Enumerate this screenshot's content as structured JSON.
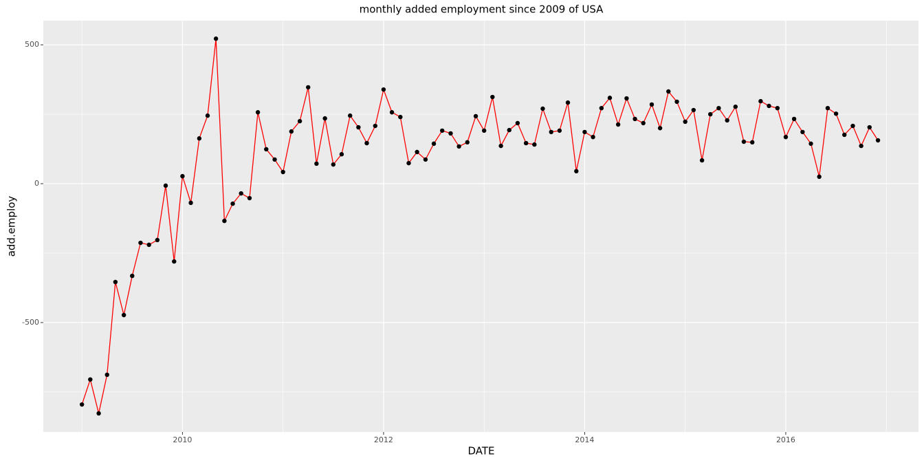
{
  "chart_data": {
    "type": "line",
    "title": "monthly added employment since 2009 of USA",
    "x_label": "DATE",
    "y_label": "add.employ",
    "x": [
      2009,
      2009.083,
      2009.167,
      2009.25,
      2009.333,
      2009.417,
      2009.5,
      2009.583,
      2009.667,
      2009.75,
      2009.833,
      2009.917,
      2010,
      2010.083,
      2010.167,
      2010.25,
      2010.333,
      2010.417,
      2010.5,
      2010.583,
      2010.667,
      2010.75,
      2010.833,
      2010.917,
      2011,
      2011.083,
      2011.167,
      2011.25,
      2011.333,
      2011.417,
      2011.5,
      2011.583,
      2011.667,
      2011.75,
      2011.833,
      2011.917,
      2012,
      2012.083,
      2012.167,
      2012.25,
      2012.333,
      2012.417,
      2012.5,
      2012.583,
      2012.667,
      2012.75,
      2012.833,
      2012.917,
      2013,
      2013.083,
      2013.167,
      2013.25,
      2013.333,
      2013.417,
      2013.5,
      2013.583,
      2013.667,
      2013.75,
      2013.833,
      2013.917,
      2014,
      2014.083,
      2014.167,
      2014.25,
      2014.333,
      2014.417,
      2014.5,
      2014.583,
      2014.667,
      2014.75,
      2014.833,
      2014.917,
      2015,
      2015.083,
      2015.167,
      2015.25,
      2015.333,
      2015.417,
      2015.5,
      2015.583,
      2015.667,
      2015.75,
      2015.833,
      2015.917,
      2016,
      2016.083,
      2016.167,
      2016.25,
      2016.333,
      2016.417,
      2016.5,
      2016.583,
      2016.667,
      2016.75,
      2016.833,
      2016.917
    ],
    "series": [
      {
        "color": "#ff0000",
        "point_color": "#000000",
        "values": [
          -795,
          -705,
          -827,
          -688,
          -354,
          -473,
          -332,
          -213,
          -220,
          -203,
          -7,
          -280,
          27,
          -69,
          163,
          245,
          522,
          -134,
          -72,
          -35,
          -52,
          257,
          124,
          87,
          42,
          188,
          225,
          347,
          72,
          235,
          69,
          106,
          245,
          203,
          146,
          208,
          339,
          257,
          240,
          74,
          114,
          87,
          144,
          191,
          181,
          134,
          149,
          243,
          191,
          312,
          136,
          193,
          218,
          146,
          141,
          270,
          186,
          191,
          292,
          45,
          186,
          168,
          272,
          309,
          213,
          307,
          233,
          218,
          285,
          200,
          332,
          295,
          223,
          265,
          84,
          250,
          272,
          228,
          277,
          151,
          149,
          297,
          280,
          272,
          168,
          233,
          186,
          144,
          25,
          272,
          252,
          176,
          208,
          136,
          203,
          156
        ]
      }
    ],
    "xlim": [
      2008.616,
      2017.32
    ],
    "xticks": [
      2010,
      2012,
      2014,
      2016
    ],
    "ylim": [
      -894,
      587
    ],
    "yticks": [
      -500,
      0,
      500
    ],
    "grid": true
  }
}
